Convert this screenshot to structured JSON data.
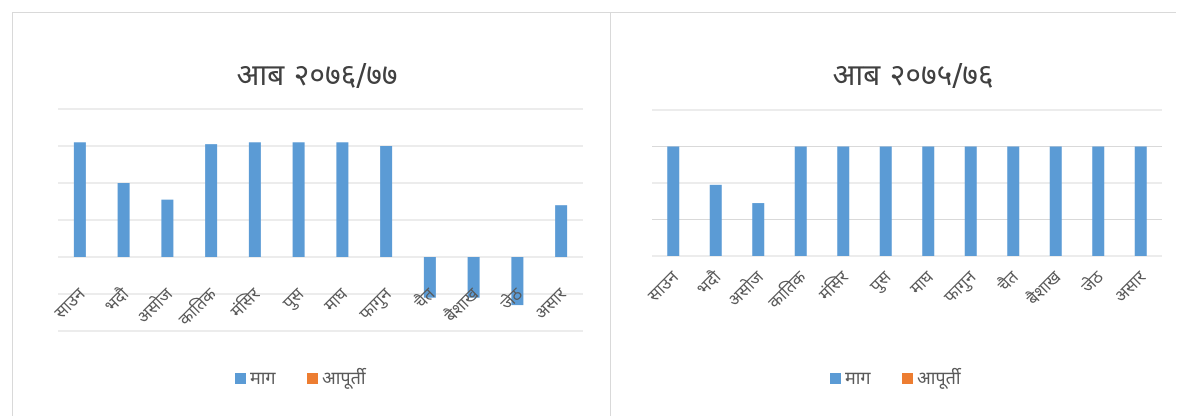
{
  "chart_data": [
    {
      "type": "bar",
      "title": "आब २०७६/७७",
      "categories": [
        "साउन",
        "भदौ",
        "असोज",
        "कातिक",
        "मंसिर",
        "पुस",
        "माघ",
        "फागुन",
        "चैत",
        "बैशाख",
        "जेठ",
        "असार"
      ],
      "series": [
        {
          "name": "माग",
          "color": "#5b9bd5",
          "values": [
            3.1,
            2.0,
            1.55,
            3.05,
            3.1,
            3.1,
            3.1,
            3.0,
            -1.1,
            -1.1,
            -1.3,
            1.4
          ]
        },
        {
          "name": "आपूर्ती",
          "color": "#ed7d31",
          "values": [
            0,
            0,
            0,
            0,
            0,
            0,
            0,
            0,
            0,
            0,
            0,
            0
          ]
        }
      ],
      "ylim": [
        -2,
        4
      ],
      "grid": true,
      "legend": "bottom"
    },
    {
      "type": "bar",
      "title": "आब २०७५/७६",
      "categories": [
        "साउन",
        "भदौ",
        "असोज",
        "कातिक",
        "मंसिर",
        "पुस",
        "माघ",
        "फागुन",
        "चैत",
        "बैशाख",
        "जेठ",
        "असार"
      ],
      "series": [
        {
          "name": "माग",
          "color": "#5b9bd5",
          "values": [
            3.0,
            1.95,
            1.45,
            3.0,
            3.0,
            3.0,
            3.0,
            3.0,
            3.0,
            3.0,
            3.0,
            3.0
          ]
        },
        {
          "name": "आपूर्ती",
          "color": "#ed7d31",
          "values": [
            0,
            0,
            0,
            0,
            0,
            0,
            0,
            0,
            0,
            0,
            0,
            0
          ]
        }
      ],
      "ylim": [
        0,
        4
      ],
      "grid": true,
      "legend": "bottom"
    }
  ]
}
